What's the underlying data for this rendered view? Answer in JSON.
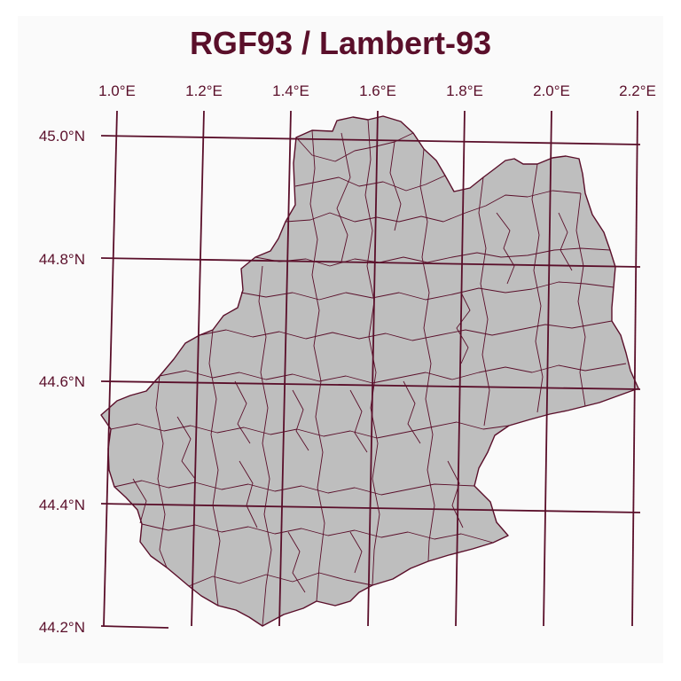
{
  "map": {
    "title": "RGF93 / Lambert-93",
    "lon_ticks": [
      "1.0°E",
      "1.2°E",
      "1.4°E",
      "1.6°E",
      "1.8°E",
      "2.0°E",
      "2.2°E"
    ],
    "lat_ticks": [
      "45.0°N",
      "44.8°N",
      "44.6°N",
      "44.4°N",
      "44.2°N"
    ],
    "colors": {
      "line": "#5a0f2a",
      "fill": "#bebebe",
      "panel": "#fafafa"
    }
  }
}
